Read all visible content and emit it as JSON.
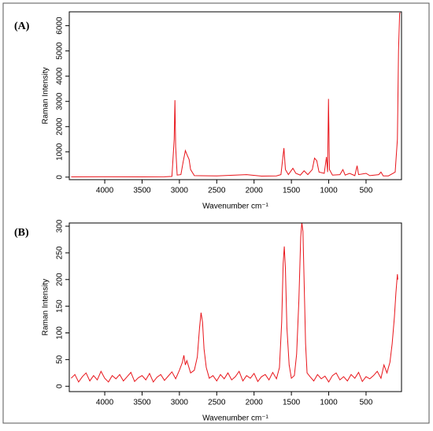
{
  "chart_data": [
    {
      "type": "line",
      "title": "(A)",
      "xlabel": "Wavenumber cm⁻¹",
      "ylabel": "Raman Intensity",
      "color": "#e8141a",
      "xlim": [
        4475,
        25
      ],
      "ylim": [
        -100,
        6550
      ],
      "xticks": [
        4000,
        3500,
        3000,
        2500,
        2000,
        1500,
        1000,
        500
      ],
      "yticks": [
        0,
        1000,
        2000,
        3000,
        4000,
        5000,
        6000
      ],
      "x": [
        4450,
        4000,
        3500,
        3200,
        3100,
        3070,
        3060,
        3050,
        3030,
        2980,
        2950,
        2920,
        2900,
        2870,
        2850,
        2800,
        2500,
        2100,
        1900,
        1700,
        1640,
        1600,
        1580,
        1540,
        1480,
        1440,
        1380,
        1330,
        1280,
        1220,
        1190,
        1160,
        1130,
        1060,
        1030,
        1015,
        1003,
        990,
        950,
        850,
        810,
        780,
        720,
        650,
        620,
        600,
        500,
        450,
        330,
        300,
        270,
        200,
        110,
        80,
        65,
        50,
        40
      ],
      "y": [
        10,
        15,
        10,
        15,
        30,
        1500,
        3050,
        1200,
        80,
        100,
        600,
        1050,
        900,
        700,
        300,
        60,
        50,
        100,
        40,
        50,
        100,
        1150,
        300,
        100,
        350,
        150,
        80,
        250,
        100,
        300,
        750,
        650,
        200,
        150,
        800,
        200,
        3100,
        300,
        80,
        100,
        300,
        80,
        150,
        60,
        450,
        100,
        150,
        60,
        100,
        200,
        50,
        50,
        200,
        1500,
        5000,
        6500,
        6500
      ]
    },
    {
      "type": "line",
      "title": "(B)",
      "xlabel": "Wavenumber cm⁻¹",
      "ylabel": "Raman Intensity",
      "color": "#e8141a",
      "xlim": [
        4475,
        25
      ],
      "ylim": [
        -10,
        306
      ],
      "xticks": [
        4000,
        3500,
        3000,
        2500,
        2000,
        1500,
        1000,
        500
      ],
      "yticks": [
        0,
        50,
        100,
        150,
        200,
        250,
        300
      ],
      "x": [
        4450,
        4400,
        4350,
        4300,
        4250,
        4200,
        4150,
        4100,
        4050,
        4000,
        3950,
        3900,
        3850,
        3800,
        3750,
        3700,
        3650,
        3600,
        3550,
        3500,
        3450,
        3400,
        3350,
        3300,
        3250,
        3200,
        3150,
        3100,
        3050,
        3000,
        2960,
        2940,
        2920,
        2900,
        2850,
        2800,
        2760,
        2730,
        2710,
        2690,
        2670,
        2640,
        2600,
        2550,
        2500,
        2450,
        2400,
        2350,
        2300,
        2250,
        2200,
        2150,
        2100,
        2050,
        2000,
        1950,
        1900,
        1850,
        1800,
        1750,
        1700,
        1660,
        1630,
        1610,
        1595,
        1580,
        1560,
        1530,
        1500,
        1460,
        1430,
        1400,
        1375,
        1360,
        1345,
        1330,
        1310,
        1290,
        1250,
        1200,
        1150,
        1100,
        1050,
        1000,
        950,
        900,
        850,
        800,
        750,
        700,
        650,
        600,
        550,
        500,
        450,
        400,
        350,
        300,
        260,
        220,
        180,
        150,
        120,
        100,
        80,
        75
      ],
      "y": [
        15,
        22,
        8,
        18,
        25,
        10,
        20,
        12,
        28,
        15,
        8,
        20,
        14,
        22,
        10,
        18,
        26,
        9,
        16,
        20,
        12,
        24,
        8,
        17,
        22,
        11,
        19,
        27,
        14,
        30,
        45,
        58,
        40,
        48,
        25,
        30,
        55,
        110,
        138,
        120,
        70,
        35,
        15,
        20,
        10,
        22,
        14,
        25,
        12,
        18,
        28,
        10,
        20,
        15,
        24,
        9,
        18,
        22,
        12,
        26,
        14,
        35,
        120,
        230,
        262,
        220,
        110,
        40,
        15,
        20,
        60,
        160,
        280,
        307,
        290,
        200,
        80,
        25,
        18,
        10,
        22,
        14,
        19,
        8,
        20,
        25,
        12,
        18,
        10,
        22,
        15,
        26,
        9,
        18,
        14,
        20,
        28,
        15,
        40,
        25,
        45,
        80,
        130,
        175,
        210,
        200
      ]
    }
  ]
}
